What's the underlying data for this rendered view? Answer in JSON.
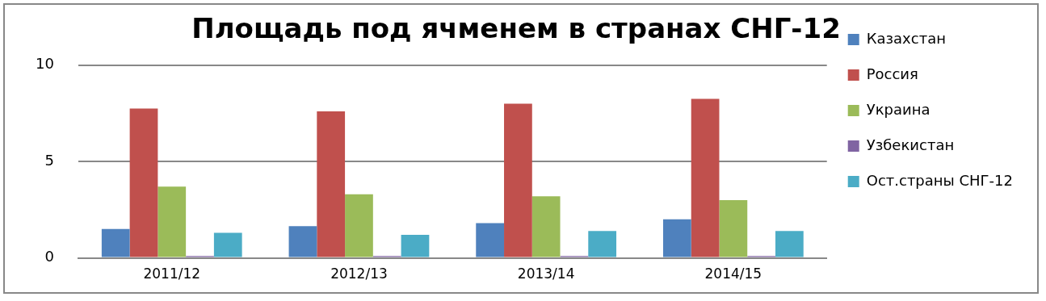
{
  "chart_data": {
    "type": "bar",
    "title": "Площадь под ячменем в странах СНГ-12",
    "categories": [
      "2011/12",
      "2012/13",
      "2013/14",
      "2014/15"
    ],
    "series": [
      {
        "name": "Казахстан",
        "color": "#4f81bd",
        "values": [
          1.5,
          1.65,
          1.8,
          2.0
        ]
      },
      {
        "name": "Россия",
        "color": "#c0504d",
        "values": [
          7.75,
          7.6,
          8.0,
          8.25
        ]
      },
      {
        "name": "Украина",
        "color": "#9bbb59",
        "values": [
          3.7,
          3.3,
          3.2,
          3.0
        ]
      },
      {
        "name": "Узбекистан",
        "color": "#8064a2",
        "values": [
          0.1,
          0.1,
          0.1,
          0.1
        ]
      },
      {
        "name": "Ост.страны СНГ-12",
        "color": "#4bacc6",
        "values": [
          1.3,
          1.2,
          1.4,
          1.4
        ]
      }
    ],
    "ylim": [
      0,
      10
    ],
    "yticks": [
      0,
      5,
      10
    ],
    "grid": "y",
    "legend": "right"
  }
}
